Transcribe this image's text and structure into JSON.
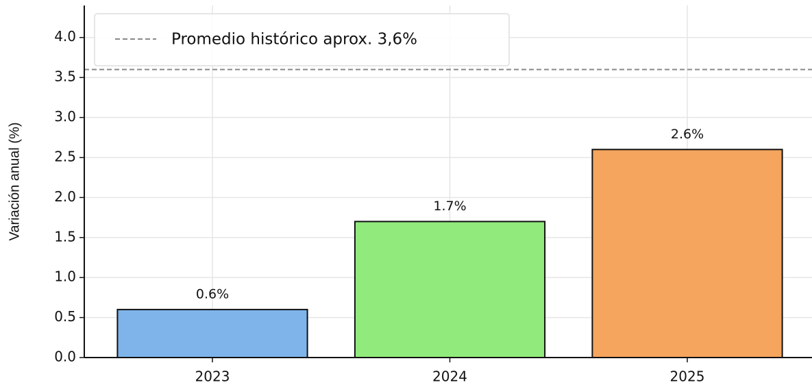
{
  "chart_data": {
    "type": "bar",
    "y_label": "Variación anual (%)",
    "categories": [
      "2023",
      "2024",
      "2025"
    ],
    "values": [
      0.6,
      1.7,
      2.6
    ],
    "value_labels": [
      "0.6%",
      "1.7%",
      "2.6%"
    ],
    "colors": [
      "#7eb4ea",
      "#90ea7c",
      "#f5a55e"
    ],
    "ylim": [
      0,
      4.4
    ],
    "yticks": [
      {
        "value": 0,
        "label": "0.0"
      },
      0.5,
      {
        "value": 1,
        "label": "1.0"
      },
      1.5,
      {
        "value": 2,
        "label": "2.0"
      },
      2.5,
      {
        "value": 3,
        "label": "3.0"
      },
      3.5,
      {
        "value": 4,
        "label": "4.0"
      }
    ],
    "grid": true,
    "legend": "upper left",
    "reference_line": {
      "value": 3.6,
      "label": "Promedio histórico aprox. 3,6%",
      "color": "#888888"
    }
  }
}
